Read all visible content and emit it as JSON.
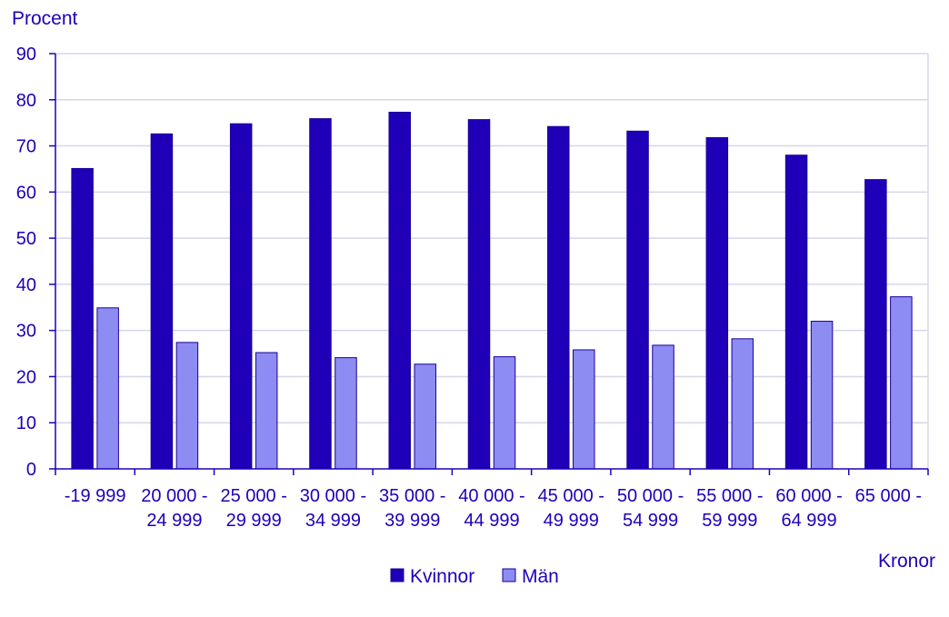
{
  "chart_data": {
    "type": "bar",
    "ylabel": "Procent",
    "xlabel": "Kronor",
    "ylim": [
      0,
      90
    ],
    "yticks": [
      0,
      10,
      20,
      30,
      40,
      50,
      60,
      70,
      80,
      90
    ],
    "grid": true,
    "legend_position": "bottom",
    "categories": [
      [
        "-19 999",
        ""
      ],
      [
        "20 000 -",
        "24 999"
      ],
      [
        "25 000 -",
        "29 999"
      ],
      [
        "30 000 -",
        "34 999"
      ],
      [
        "35 000 -",
        "39 999"
      ],
      [
        "40 000 -",
        "44 999"
      ],
      [
        "45 000 -",
        "49 999"
      ],
      [
        "50 000 -",
        "54 999"
      ],
      [
        "55 000 -",
        "59 999"
      ],
      [
        "60 000 -",
        "64 999"
      ],
      [
        "65 000 -",
        ""
      ]
    ],
    "series": [
      {
        "name": "Kvinnor",
        "color": "#1f00b8",
        "values": [
          65.1,
          72.6,
          74.8,
          75.9,
          77.3,
          75.7,
          74.2,
          73.2,
          71.8,
          68.0,
          62.7
        ]
      },
      {
        "name": "Män",
        "color": "#8c8cf2",
        "values": [
          34.9,
          27.4,
          25.2,
          24.1,
          22.7,
          24.3,
          25.8,
          26.8,
          28.2,
          32.0,
          37.3
        ]
      }
    ]
  },
  "colors": {
    "text": "#1f00b8",
    "grid": "#d6d6ea",
    "axis": "#1f00b8",
    "bar_stroke": "#1a0099"
  }
}
